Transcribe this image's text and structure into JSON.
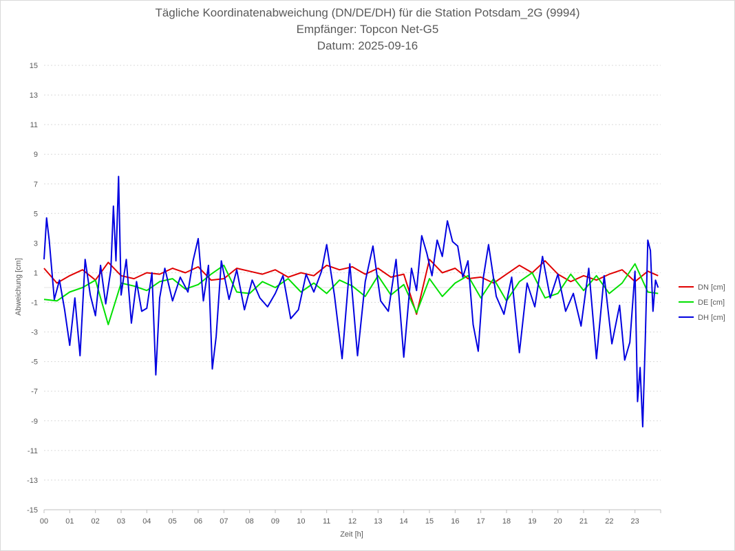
{
  "chart_data": {
    "type": "line",
    "title": "Tägliche Koordinatenabweichung (DN/DE/DH) für die Station Potsdam_2G (9994)",
    "subtitle1": "Empfänger: Topcon Net-G5",
    "subtitle2": "Datum: 2025-09-16",
    "xlabel": "Zeit [h]",
    "ylabel": "Abweichung [cm]",
    "xlim": [
      0,
      24
    ],
    "ylim": [
      -15,
      15
    ],
    "x_ticks": [
      "00",
      "01",
      "02",
      "03",
      "04",
      "05",
      "06",
      "07",
      "08",
      "09",
      "10",
      "11",
      "12",
      "13",
      "14",
      "15",
      "16",
      "17",
      "18",
      "19",
      "20",
      "21",
      "22",
      "23"
    ],
    "y_ticks": [
      15,
      13,
      11,
      9,
      7,
      5,
      3,
      1,
      -1,
      -3,
      -5,
      -7,
      -9,
      -11,
      -13,
      -15
    ],
    "grid": "horizontal dotted",
    "legend_position": "right",
    "series": [
      {
        "name": "DN [cm]",
        "color": "#e00000",
        "x": [
          0.0,
          0.5,
          1.0,
          1.5,
          2.0,
          2.5,
          3.0,
          3.5,
          4.0,
          4.5,
          5.0,
          5.5,
          6.0,
          6.5,
          7.0,
          7.5,
          8.0,
          8.5,
          9.0,
          9.5,
          10.0,
          10.5,
          11.0,
          11.5,
          12.0,
          12.5,
          13.0,
          13.5,
          14.0,
          14.5,
          15.0,
          15.5,
          16.0,
          16.5,
          17.0,
          17.5,
          18.0,
          18.5,
          19.0,
          19.5,
          20.0,
          20.5,
          21.0,
          21.5,
          22.0,
          22.5,
          23.0,
          23.5,
          23.9
        ],
        "values": [
          1.3,
          0.3,
          0.8,
          1.2,
          0.5,
          1.7,
          0.8,
          0.6,
          1.0,
          0.9,
          1.3,
          1.0,
          1.4,
          0.5,
          0.6,
          1.3,
          1.1,
          0.9,
          1.2,
          0.7,
          1.0,
          0.8,
          1.5,
          1.2,
          1.4,
          0.9,
          1.3,
          0.7,
          0.9,
          -1.8,
          1.9,
          1.0,
          1.3,
          0.6,
          0.7,
          0.3,
          0.9,
          1.5,
          1.0,
          1.8,
          0.9,
          0.4,
          0.8,
          0.5,
          0.9,
          1.2,
          0.4,
          1.1,
          0.8
        ]
      },
      {
        "name": "DE [cm]",
        "color": "#00e000",
        "x": [
          0.0,
          0.5,
          1.0,
          1.5,
          2.0,
          2.5,
          3.0,
          3.5,
          4.0,
          4.5,
          5.0,
          5.5,
          6.0,
          6.5,
          7.0,
          7.5,
          8.0,
          8.5,
          9.0,
          9.5,
          10.0,
          10.5,
          11.0,
          11.5,
          12.0,
          12.5,
          13.0,
          13.5,
          14.0,
          14.5,
          15.0,
          15.5,
          16.0,
          16.5,
          17.0,
          17.5,
          18.0,
          18.5,
          19.0,
          19.5,
          20.0,
          20.5,
          21.0,
          21.5,
          22.0,
          22.5,
          23.0,
          23.5,
          23.9
        ],
        "values": [
          -0.8,
          -0.9,
          -0.3,
          0.0,
          0.5,
          -2.5,
          0.3,
          0.1,
          -0.2,
          0.4,
          0.6,
          -0.1,
          0.2,
          0.9,
          1.5,
          -0.3,
          -0.4,
          0.4,
          0.0,
          0.6,
          -0.3,
          0.3,
          -0.4,
          0.5,
          0.1,
          -0.6,
          0.8,
          -0.5,
          0.2,
          -1.7,
          0.6,
          -0.6,
          0.3,
          0.8,
          -0.7,
          0.6,
          -0.9,
          0.4,
          1.0,
          -0.7,
          -0.4,
          0.9,
          -0.2,
          0.8,
          -0.4,
          0.3,
          1.6,
          -0.3,
          -0.4
        ]
      },
      {
        "name": "DH [cm]",
        "color": "#0000e0",
        "x": [
          0.0,
          0.1,
          0.2,
          0.4,
          0.6,
          0.8,
          1.0,
          1.2,
          1.4,
          1.6,
          1.8,
          2.0,
          2.2,
          2.4,
          2.6,
          2.7,
          2.8,
          2.9,
          3.0,
          3.2,
          3.4,
          3.6,
          3.8,
          4.0,
          4.2,
          4.35,
          4.5,
          4.7,
          5.0,
          5.3,
          5.6,
          5.8,
          6.0,
          6.2,
          6.4,
          6.55,
          6.7,
          6.9,
          7.2,
          7.5,
          7.8,
          8.1,
          8.4,
          8.7,
          9.0,
          9.3,
          9.6,
          9.9,
          10.2,
          10.5,
          10.8,
          11.0,
          11.3,
          11.6,
          11.9,
          12.2,
          12.5,
          12.8,
          13.1,
          13.4,
          13.7,
          14.0,
          14.3,
          14.5,
          14.7,
          14.9,
          15.1,
          15.3,
          15.5,
          15.7,
          15.9,
          16.1,
          16.3,
          16.5,
          16.7,
          16.9,
          17.1,
          17.3,
          17.6,
          17.9,
          18.2,
          18.5,
          18.8,
          19.1,
          19.4,
          19.7,
          20.0,
          20.3,
          20.6,
          20.9,
          21.2,
          21.5,
          21.8,
          22.1,
          22.4,
          22.6,
          22.8,
          23.0,
          23.1,
          23.2,
          23.3,
          23.4,
          23.5,
          23.6,
          23.7,
          23.8,
          23.9
        ],
        "values": [
          1.9,
          4.7,
          3.2,
          -0.8,
          0.5,
          -1.5,
          -3.9,
          -0.7,
          -4.6,
          1.9,
          -0.5,
          -1.9,
          1.5,
          -1.1,
          1.2,
          5.5,
          1.8,
          7.5,
          -0.5,
          1.9,
          -2.4,
          0.4,
          -1.6,
          -1.4,
          1.0,
          -5.9,
          -0.7,
          1.3,
          -0.9,
          0.7,
          -0.3,
          1.8,
          3.3,
          -0.9,
          1.5,
          -5.5,
          -3.3,
          1.8,
          -0.8,
          1.2,
          -1.5,
          0.5,
          -0.7,
          -1.3,
          -0.4,
          0.8,
          -2.1,
          -1.5,
          0.9,
          -0.3,
          1.1,
          2.9,
          -0.5,
          -4.8,
          1.6,
          -4.6,
          0.4,
          2.8,
          -0.9,
          -1.6,
          1.9,
          -4.7,
          1.3,
          -0.2,
          3.5,
          2.3,
          0.8,
          3.2,
          2.1,
          4.5,
          3.1,
          2.8,
          0.7,
          1.8,
          -2.5,
          -4.3,
          0.7,
          2.9,
          -0.6,
          -1.8,
          0.7,
          -4.4,
          0.3,
          -1.3,
          2.1,
          -0.7,
          0.9,
          -1.6,
          -0.4,
          -2.6,
          1.3,
          -4.8,
          0.8,
          -3.8,
          -1.2,
          -4.9,
          -3.7,
          1.1,
          -7.7,
          -5.4,
          -9.4,
          -3.6,
          3.2,
          2.5,
          -1.6,
          0.5,
          0.0
        ]
      }
    ]
  }
}
